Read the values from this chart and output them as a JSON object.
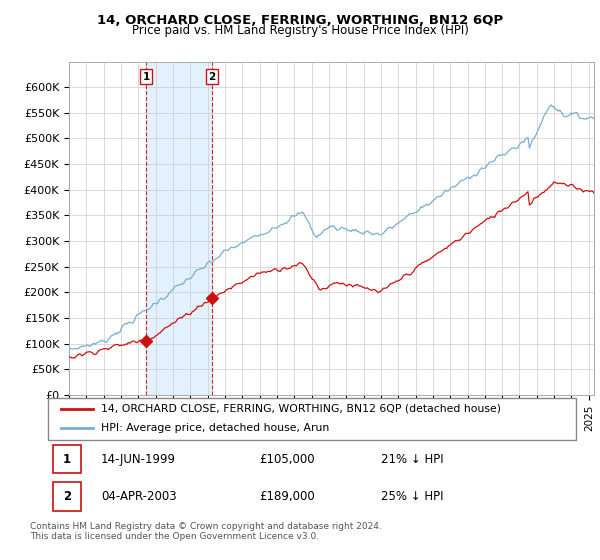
{
  "title": "14, ORCHARD CLOSE, FERRING, WORTHING, BN12 6QP",
  "subtitle": "Price paid vs. HM Land Registry's House Price Index (HPI)",
  "ylim": [
    0,
    650000
  ],
  "yticks": [
    0,
    50000,
    100000,
    150000,
    200000,
    250000,
    300000,
    350000,
    400000,
    450000,
    500000,
    550000,
    600000
  ],
  "xlim_start": 1995.0,
  "xlim_end": 2025.3,
  "hpi_color": "#7aaed6",
  "price_color": "#cc1111",
  "shade_color": "#ddeeff",
  "grid_color": "#cccccc",
  "transaction1": {
    "date": 1999.45,
    "price": 105000,
    "label": "1",
    "date_str": "14-JUN-1999",
    "pct": "21% ↓ HPI"
  },
  "transaction2": {
    "date": 2003.26,
    "price": 189000,
    "label": "2",
    "date_str": "04-APR-2003",
    "pct": "25% ↓ HPI"
  },
  "legend_line1": "14, ORCHARD CLOSE, FERRING, WORTHING, BN12 6QP (detached house)",
  "legend_line2": "HPI: Average price, detached house, Arun",
  "footnote": "Contains HM Land Registry data © Crown copyright and database right 2024.\nThis data is licensed under the Open Government Licence v3.0.",
  "table_rows": [
    [
      "1",
      "14-JUN-1999",
      "£105,000",
      "21% ↓ HPI"
    ],
    [
      "2",
      "04-APR-2003",
      "£189,000",
      "25% ↓ HPI"
    ]
  ]
}
